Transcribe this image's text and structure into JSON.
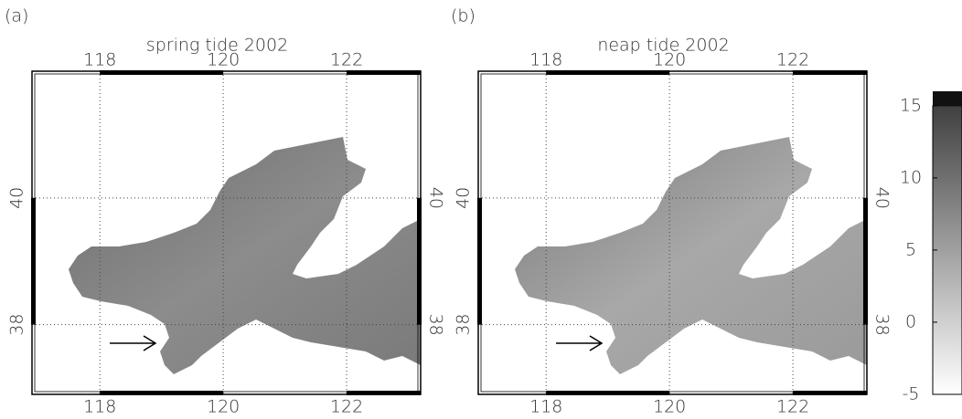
{
  "panels": [
    {
      "label": "(a)",
      "title": "spring tide 2002",
      "xlim": [
        116.9,
        123.2
      ],
      "ylim": [
        36.9,
        42.0
      ],
      "xticks": [
        118,
        120,
        122
      ],
      "yticks": [
        38,
        40
      ]
    },
    {
      "label": "(b)",
      "title": "neap tide 2002",
      "xlim": [
        116.9,
        123.2
      ],
      "ylim": [
        36.9,
        42.0
      ],
      "xticks": [
        118,
        120,
        122
      ],
      "yticks": [
        38,
        40
      ]
    }
  ],
  "colorbar": {
    "lim": [
      -5,
      16
    ],
    "ticks": [
      -5,
      0,
      5,
      10,
      15
    ]
  }
}
